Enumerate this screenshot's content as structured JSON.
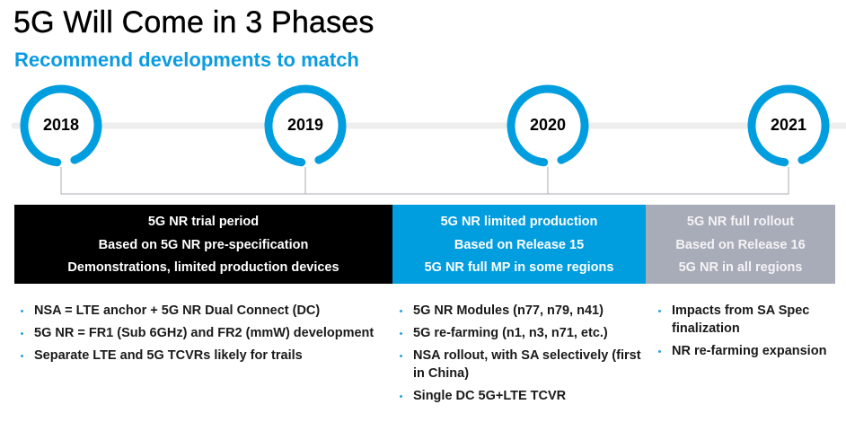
{
  "header": {
    "title": "5G Will Come in 3 Phases",
    "subtitle": "Recommend developments to match"
  },
  "colors": {
    "accent": "#009ddf",
    "phase1": "#000000",
    "phase2": "#009ddf",
    "phase3": "#a8acb8",
    "track": "#eeeeee"
  },
  "timeline": {
    "years": [
      "2018",
      "2019",
      "2020",
      "2021"
    ]
  },
  "phases": [
    {
      "lines": [
        "5G NR trial period",
        "Based on 5G NR pre-specification",
        "Demonstrations, limited production devices"
      ],
      "bullets": [
        "NSA = LTE anchor + 5G NR Dual Connect (DC)",
        "5G NR = FR1 (Sub 6GHz) and FR2 (mmW) development",
        "Separate LTE and 5G TCVRs likely for trails"
      ]
    },
    {
      "lines": [
        "5G NR limited production",
        "Based on Release 15",
        "5G NR full MP in some regions"
      ],
      "bullets": [
        "5G NR Modules (n77, n79, n41)",
        "5G re-farming (n1, n3, n71, etc.)",
        "NSA rollout, with SA selectively (first in China)",
        "Single DC 5G+LTE TCVR"
      ]
    },
    {
      "lines": [
        "5G NR full rollout",
        "Based on Release 16",
        "5G NR in all regions"
      ],
      "bullets": [
        "Impacts from SA Spec finalization",
        "NR re-farming expansion"
      ]
    }
  ]
}
